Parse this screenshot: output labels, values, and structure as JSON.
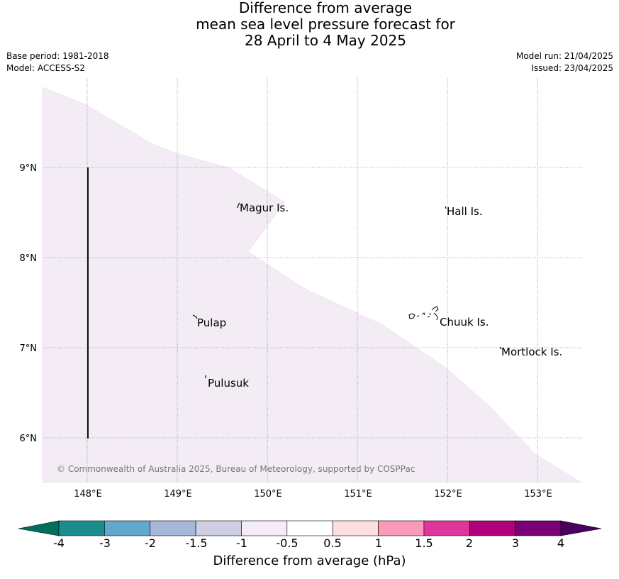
{
  "title": {
    "line1": "Difference from average",
    "line2": "mean sea level pressure forecast for",
    "line3": "28 April to 4 May 2025"
  },
  "meta": {
    "base_period": "Base period: 1981-2018",
    "model": "Model: ACCESS-S2",
    "model_run": "Model run: 21/04/2025",
    "issued": "Issued: 23/04/2025"
  },
  "map": {
    "lon_ticks": [
      "148°E",
      "149°E",
      "150°E",
      "151°E",
      "152°E",
      "153°E"
    ],
    "lat_ticks": [
      "9°N",
      "8°N",
      "7°N",
      "6°N"
    ],
    "copyright": "© Commonwealth of Australia 2025, Bureau of Meteorology, supported by COSPPac",
    "anomaly_fill_color": "#f3ecf5",
    "places": [
      {
        "name": "Magur Is.",
        "lon": 149.67,
        "lat": 8.56
      },
      {
        "name": "Hall Is.",
        "lon": 151.98,
        "lat": 8.52
      },
      {
        "name": "Pulap",
        "lon": 149.17,
        "lat": 7.33
      },
      {
        "name": "Chuuk Is.",
        "lon": 151.85,
        "lat": 7.3
      },
      {
        "name": "Mortlock Is.",
        "lon": 152.58,
        "lat": 6.98
      },
      {
        "name": "Pulusuk",
        "lon": 149.3,
        "lat": 6.68
      }
    ]
  },
  "colorbar": {
    "title": "Difference from average (hPa)",
    "tick_labels": [
      "-4",
      "-3",
      "-2",
      "-1.5",
      "-1",
      "-0.5",
      "0.5",
      "1",
      "1.5",
      "2",
      "3",
      "4"
    ],
    "colors": [
      "#1a8c8c",
      "#62a7cc",
      "#a6b8d8",
      "#cfcfe4",
      "#f3ecf5",
      "#ffffff",
      "#fddfe0",
      "#f99bb8",
      "#e0359a",
      "#b0007a",
      "#7a0078"
    ],
    "under_color": "#006f5e",
    "over_color": "#4a0060"
  }
}
